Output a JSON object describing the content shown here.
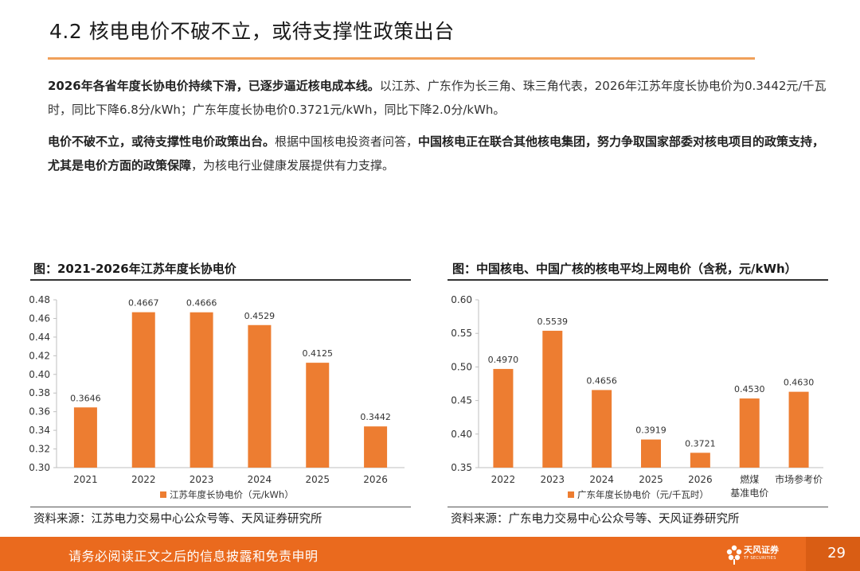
{
  "header": {
    "title": "4.2 核电电价不破不立，或待支撑性政策出台"
  },
  "paragraphs": {
    "p1_bold": "2026年各省年度长协电价持续下滑，已逐步逼近核电成本线。",
    "p1_text": "以江苏、广东作为长三角、珠三角代表，2026年江苏年度长协电价为0.3442元/千瓦时，同比下降6.8分/kWh；广东年度长协电价0.3721元/kWh，同比下降2.0分/kWh。",
    "p2_bold1": "电价不破不立，或待支撑性电价政策出台。",
    "p2_text1": "根据中国核电投资者问答，",
    "p2_bold2": "中国核电正在联合其他核电集团，努力争取国家部委对核电项目的政策支持，尤其是电价方面的政策保障",
    "p2_text2": "，为核电行业健康发展提供有力支撑。"
  },
  "chart_left": {
    "heading": "图：2021-2026年江苏年度长协电价",
    "source": "资料来源：江苏电力交易中心公众号等、天风证券研究所"
  },
  "chart_right": {
    "heading": "图：中国核电、中国广核的核电平均上网电价（含税，元/kWh）",
    "source": "资料来源：广东电力交易中心公众号等、天风证券研究所"
  },
  "chart_data": [
    {
      "type": "bar",
      "categories": [
        "2021",
        "2022",
        "2023",
        "2024",
        "2025",
        "2026"
      ],
      "series": [
        {
          "name": "江苏年度长协电价（元/kWh）",
          "values": [
            0.3646,
            0.4667,
            0.4666,
            0.4529,
            0.4125,
            0.3442
          ]
        }
      ],
      "data_labels": [
        "0.3646",
        "0.4667",
        "0.4666",
        "0.4529",
        "0.4125",
        "0.3442"
      ],
      "ylim": [
        0.3,
        0.48
      ],
      "yticks": [
        "0.30",
        "0.32",
        "0.34",
        "0.36",
        "0.38",
        "0.40",
        "0.42",
        "0.44",
        "0.46",
        "0.48"
      ],
      "legend_position": "bottom",
      "grid": false,
      "color": "#ed7d31"
    },
    {
      "type": "bar",
      "categories": [
        "2022",
        "2023",
        "2024",
        "2025",
        "2026",
        "燃煤\n基准电价",
        "市场参考价"
      ],
      "series": [
        {
          "name": "广东年度长协电价（元/千瓦时）",
          "values": [
            0.497,
            0.5539,
            0.4656,
            0.3919,
            0.3721,
            0.453,
            0.463
          ]
        }
      ],
      "data_labels": [
        "0.4970",
        "0.5539",
        "0.4656",
        "0.3919",
        "0.3721",
        "0.4530",
        "0.4630"
      ],
      "ylim": [
        0.35,
        0.6
      ],
      "yticks": [
        "0.35",
        "0.40",
        "0.45",
        "0.50",
        "0.55",
        "0.60"
      ],
      "legend_position": "bottom",
      "grid": false,
      "color": "#ed7d31"
    }
  ],
  "footer": {
    "disclaimer": "请务必阅读正文之后的信息披露和免责申明",
    "logo_name": "天风证券",
    "logo_sub": "TF SECURITIES",
    "page_number": "29"
  }
}
